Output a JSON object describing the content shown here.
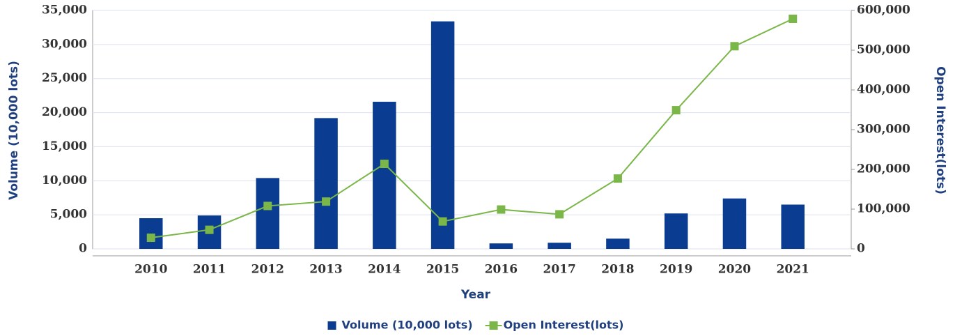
{
  "chart_data": {
    "type": "bar",
    "x_label": "Year",
    "y_label": "Volume (10,000 lots)",
    "y2_label": "Open Interest(lots)",
    "categories": [
      "2010",
      "2011",
      "2012",
      "2013",
      "2014",
      "2015",
      "2016",
      "2017",
      "2018",
      "2019",
      "2020",
      "2021"
    ],
    "series": [
      {
        "name": "Volume (10,000 lots)",
        "type": "bar",
        "color": "#0a3d91",
        "values": [
          4500,
          4900,
          10400,
          19200,
          21600,
          33400,
          800,
          900,
          1500,
          5200,
          7400,
          6500
        ]
      },
      {
        "name": "Open Interest(lots)",
        "type": "line",
        "axis": "y2",
        "color": "#7ab648",
        "values": [
          28000,
          48000,
          108000,
          119000,
          214000,
          69000,
          99000,
          87000,
          177000,
          349000,
          510000,
          579000
        ]
      }
    ],
    "ylim": [
      0,
      35000
    ],
    "yticks": [
      0,
      {
        "value": 5000,
        "label": "5,000"
      },
      {
        "value": 10000,
        "label": "10,000"
      },
      {
        "value": 15000,
        "label": "15,000"
      },
      {
        "value": 20000,
        "label": "20,000"
      },
      {
        "value": 25000,
        "label": "25,000"
      },
      {
        "value": 30000,
        "label": "30,000"
      },
      {
        "value": 35000,
        "label": "35,000"
      }
    ],
    "y2lim": [
      0,
      600000
    ],
    "y2ticks": [
      0,
      {
        "value": 100000,
        "label": "100,000"
      },
      {
        "value": 200000,
        "label": "200,000"
      },
      {
        "value": 300000,
        "label": "300,000"
      },
      {
        "value": 400000,
        "label": "400,000"
      },
      {
        "value": 500000,
        "label": "500,000"
      },
      {
        "value": 600000,
        "label": "600,000"
      }
    ],
    "grid": true,
    "legend": "bottom"
  }
}
